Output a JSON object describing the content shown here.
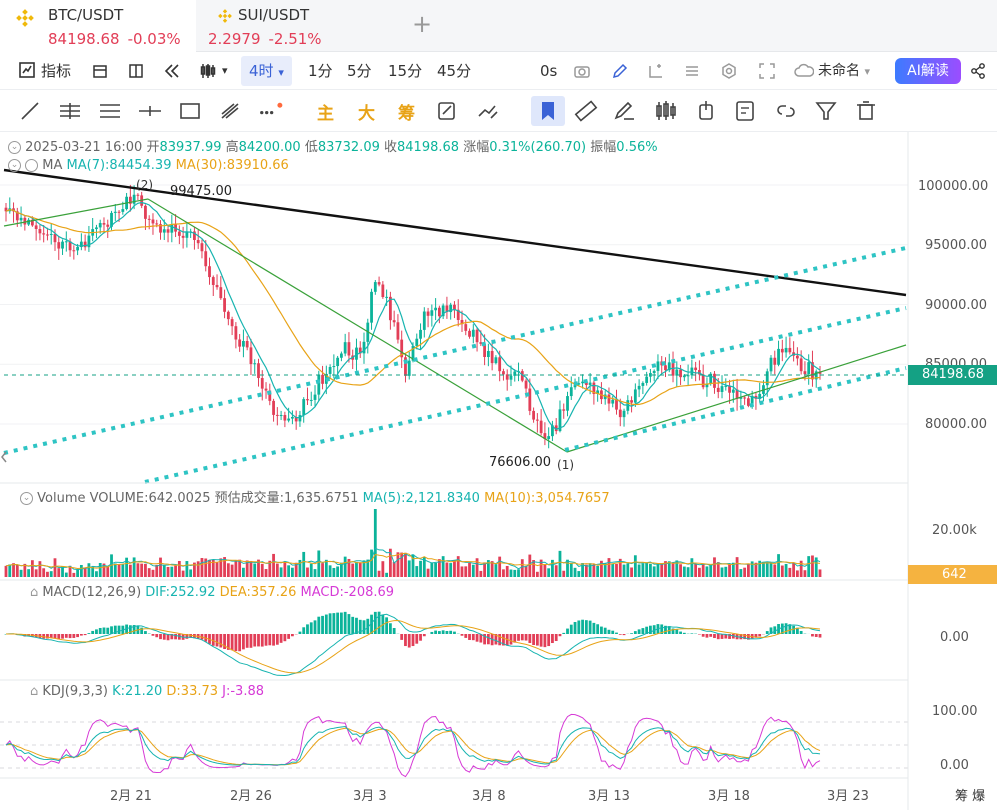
{
  "tabs": [
    {
      "symbol": "BTC/USDT",
      "price": "84198.68",
      "change": "-0.03%",
      "icon": "binance-icon"
    },
    {
      "symbol": "SUI/USDT",
      "price": "2.2979",
      "change": "-2.51%",
      "icon": "binance-icon"
    }
  ],
  "toolbar": {
    "indicators": "指标",
    "interval_active": "4时",
    "intervals": [
      "1分",
      "5分",
      "15分",
      "45分"
    ],
    "second_label": "0s",
    "layout_name": "未命名",
    "ai_button": "AI解读"
  },
  "drawing_tools": {
    "main": "主",
    "big": "大",
    "chips": "筹"
  },
  "ohlc": {
    "datetime": "2025-03-21 16:00",
    "open_label": "开",
    "open": "83937.99",
    "high_label": "高",
    "high": "84200.00",
    "low_label": "低",
    "low": "83732.09",
    "close_label": "收",
    "close": "84198.68",
    "change_label": "涨幅",
    "change": "0.31%(260.70)",
    "amplitude_label": "振幅",
    "amplitude": "0.56%"
  },
  "ma": {
    "label": "MA",
    "ma7": "MA(7):84454.39",
    "ma30": "MA(30):83910.66"
  },
  "volume_info": {
    "label": "Volume",
    "volume": "VOLUME:642.0025",
    "est": "预估成交量:1,635.6751",
    "ma5": "MA(5):2,121.8340",
    "ma10": "MA(10):3,054.7657"
  },
  "macd_info": {
    "label": "MACD(12,26,9)",
    "dif": "DIF:252.92",
    "dea": "DEA:357.26",
    "macd": "MACD:-208.69"
  },
  "kdj_info": {
    "label": "KDJ(9,3,3)",
    "k": "K:21.20",
    "d": "D:33.73",
    "j": "J:-3.88"
  },
  "annotations": {
    "high": "99475.00",
    "low": "76606.00",
    "high_marker": "2",
    "low_marker": "1"
  },
  "price_axis": [
    "100000.00",
    "95000.00",
    "90000.00",
    "85000.00",
    "80000.00"
  ],
  "current_price": "84198.68",
  "volume_axis": "20.00k",
  "current_volume": "642",
  "macd_axis": "0.00",
  "kdj_axis": [
    "100.00",
    "0.00"
  ],
  "x_axis": [
    "2月 21",
    "2月 26",
    "3月 3",
    "3月 8",
    "3月 13",
    "3月 18",
    "3月 23"
  ],
  "x_axis_right": "筹 爆",
  "colors": {
    "up": "#0bb39a",
    "down": "#e23e57",
    "ma7": "#17b4b0",
    "ma30": "#e8a317",
    "accent": "#3a62d6"
  },
  "chart_data": {
    "type": "candlestick",
    "price_range": [
      76000,
      102000
    ],
    "anchors": [
      [
        0,
        97800
      ],
      [
        8,
        96800
      ],
      [
        14,
        95200
      ],
      [
        20,
        94800
      ],
      [
        26,
        96600
      ],
      [
        32,
        98800
      ],
      [
        34,
        99200
      ],
      [
        38,
        97000
      ],
      [
        44,
        96400
      ],
      [
        50,
        95600
      ],
      [
        55,
        92000
      ],
      [
        60,
        88000
      ],
      [
        66,
        84800
      ],
      [
        72,
        80600
      ],
      [
        76,
        80200
      ],
      [
        80,
        82200
      ],
      [
        86,
        84800
      ],
      [
        90,
        86400
      ],
      [
        94,
        85600
      ],
      [
        98,
        92000
      ],
      [
        101,
        90000
      ],
      [
        106,
        84600
      ],
      [
        111,
        88800
      ],
      [
        116,
        89800
      ],
      [
        121,
        88800
      ],
      [
        126,
        86400
      ],
      [
        131,
        84600
      ],
      [
        136,
        83800
      ],
      [
        141,
        80200
      ],
      [
        144,
        78600
      ],
      [
        147,
        80600
      ],
      [
        152,
        84000
      ],
      [
        158,
        82400
      ],
      [
        163,
        80800
      ],
      [
        168,
        83200
      ],
      [
        173,
        84600
      ],
      [
        178,
        84400
      ],
      [
        183,
        84000
      ],
      [
        188,
        83400
      ],
      [
        193,
        82800
      ],
      [
        198,
        82000
      ],
      [
        202,
        84200
      ],
      [
        205,
        86200
      ],
      [
        208,
        85400
      ],
      [
        212,
        84600
      ],
      [
        216,
        84198
      ]
    ]
  }
}
